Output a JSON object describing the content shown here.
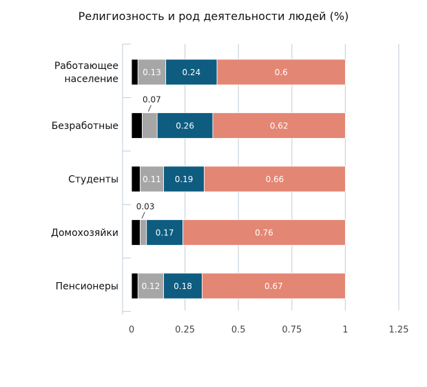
{
  "chart_data": {
    "type": "bar",
    "orientation": "horizontal",
    "stacked": true,
    "title": "Религиозность и род деятельности людей (%)",
    "xlabel": "",
    "ylabel": "",
    "categories": [
      "Работающее население",
      "Безработные",
      "Студенты",
      "Домохозяйки",
      "Пенсионеры"
    ],
    "category_lines": [
      [
        "Работающее",
        "население"
      ],
      [
        "Безработные"
      ],
      [
        "Студенты"
      ],
      [
        "Домохозяйки"
      ],
      [
        "Пенсионеры"
      ]
    ],
    "series": [
      {
        "color": "#000000",
        "values": [
          0.03,
          0.05,
          0.04,
          0.04,
          0.03
        ]
      },
      {
        "color": "#a6a6a6",
        "values": [
          0.13,
          0.07,
          0.11,
          0.03,
          0.12
        ]
      },
      {
        "color": "#0e5c80",
        "values": [
          0.24,
          0.26,
          0.19,
          0.17,
          0.18
        ]
      },
      {
        "color": "#e48674",
        "values": [
          0.6,
          0.62,
          0.66,
          0.76,
          0.67
        ]
      }
    ],
    "data_labels": [
      [
        null,
        "0.13",
        "0.24",
        "0.6"
      ],
      [
        null,
        "0.07",
        "0.26",
        "0.62"
      ],
      [
        null,
        "0.11",
        "0.19",
        "0.66"
      ],
      [
        null,
        "0.03",
        "0.17",
        "0.76"
      ],
      [
        null,
        "0.12",
        "0.18",
        "0.67"
      ]
    ],
    "xlim": [
      0,
      1.25
    ],
    "xticks": [
      0,
      0.25,
      0.5,
      0.75,
      1,
      1.25
    ],
    "xtick_labels": [
      "0",
      "0.25",
      "0.5",
      "0.75",
      "1",
      "1.25"
    ],
    "grid": true,
    "legend": "none"
  }
}
